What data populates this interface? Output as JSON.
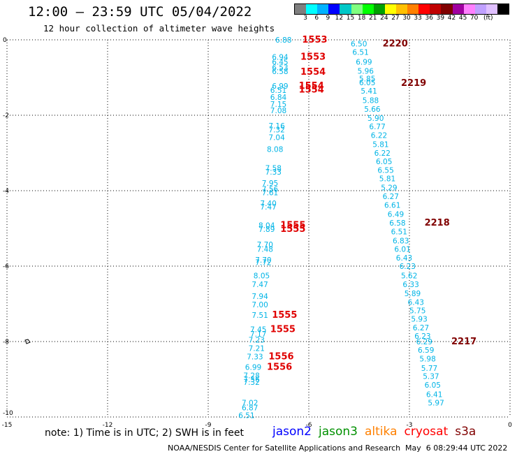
{
  "header": {
    "title": "12:00 – 23:59 UTC 05/04/2022",
    "subtitle": "12 hour collection of altimeter wave heights"
  },
  "scale": {
    "colors": [
      "#7f7f7f",
      "#00ffff",
      "#00b2ff",
      "#0000ff",
      "#00c8c8",
      "#80ff80",
      "#00ff00",
      "#00a000",
      "#ffff00",
      "#ffc000",
      "#ff8000",
      "#ff0000",
      "#c00000",
      "#800000",
      "#a000a0",
      "#ff80ff",
      "#c0a0ff",
      "#e0c0ff",
      "#000000"
    ],
    "labels": [
      "3",
      "6",
      "9",
      "12",
      "15",
      "18",
      "21",
      "24",
      "27",
      "30",
      "33",
      "36",
      "39",
      "42",
      "45",
      "70",
      "(ft)"
    ]
  },
  "note": "note: 1) Time is in UTC; 2) SWH is in feet",
  "legend": [
    {
      "name": "jason2",
      "color": "#0000ff"
    },
    {
      "name": "jason3",
      "color": "#009000"
    },
    {
      "name": "altika",
      "color": "#ff8000"
    },
    {
      "name": "cryosat",
      "color": "#ff0000"
    },
    {
      "name": "s3a",
      "color": "#800000"
    }
  ],
  "footer": {
    "center": "NOAA/NESDIS Center for Satellite Applications and Research",
    "time": "May  6 08:29:44 UTC 2022"
  },
  "colors": {
    "swh": "#00b4e6",
    "cryosat": "#e00000",
    "s3a": "#800000",
    "grid": "#000000"
  },
  "chart_data": {
    "type": "scatter",
    "xlim": [
      -15,
      0
    ],
    "ylim": [
      -10,
      0
    ],
    "x_ticks": [
      -15,
      -12,
      -9,
      -6,
      -3,
      0
    ],
    "y_ticks": [
      0,
      -2,
      -4,
      -6,
      -8,
      -10
    ],
    "grid": true,
    "track_a": [
      {
        "x": -7.0,
        "y": -0.0,
        "v": "6.88"
      },
      {
        "x": -7.1,
        "y": -0.45,
        "v": "6.94"
      },
      {
        "x": -7.1,
        "y": -0.58,
        "v": "6.45"
      },
      {
        "x": -7.1,
        "y": -0.73,
        "v": "6.53"
      },
      {
        "x": -7.1,
        "y": -0.83,
        "v": "6.58"
      },
      {
        "x": -7.1,
        "y": -1.22,
        "v": "6.99"
      },
      {
        "x": -7.15,
        "y": -1.33,
        "v": "6.51"
      },
      {
        "x": -7.15,
        "y": -1.52,
        "v": "6.84"
      },
      {
        "x": -7.15,
        "y": -1.7,
        "v": "7.15"
      },
      {
        "x": -7.15,
        "y": -1.87,
        "v": "7.08"
      },
      {
        "x": -7.2,
        "y": -2.28,
        "v": "7.16"
      },
      {
        "x": -7.2,
        "y": -2.38,
        "v": "7.32"
      },
      {
        "x": -7.2,
        "y": -2.58,
        "v": "7.04"
      },
      {
        "x": -7.25,
        "y": -2.9,
        "v": "8.08"
      },
      {
        "x": -7.3,
        "y": -3.4,
        "v": "7.58"
      },
      {
        "x": -7.3,
        "y": -3.5,
        "v": "7.33"
      },
      {
        "x": -7.4,
        "y": -3.8,
        "v": "7.95"
      },
      {
        "x": -7.4,
        "y": -3.95,
        "v": "7.56"
      },
      {
        "x": -7.4,
        "y": -4.05,
        "v": "7.61"
      },
      {
        "x": -7.45,
        "y": -4.33,
        "v": "7.40"
      },
      {
        "x": -7.45,
        "y": -4.43,
        "v": "7.47"
      },
      {
        "x": -7.5,
        "y": -4.92,
        "v": "8.04"
      },
      {
        "x": -7.5,
        "y": -5.02,
        "v": "7.89"
      },
      {
        "x": -7.55,
        "y": -5.43,
        "v": "7.70"
      },
      {
        "x": -7.55,
        "y": -5.55,
        "v": "7.48"
      },
      {
        "x": -7.6,
        "y": -5.83,
        "v": "7.70"
      },
      {
        "x": -7.6,
        "y": -5.9,
        "v": "7.72"
      },
      {
        "x": -7.65,
        "y": -6.25,
        "v": "8.05"
      },
      {
        "x": -7.7,
        "y": -6.48,
        "v": "7.47"
      },
      {
        "x": -7.7,
        "y": -6.8,
        "v": "7.94"
      },
      {
        "x": -7.7,
        "y": -7.02,
        "v": "7.00"
      },
      {
        "x": -7.7,
        "y": -7.3,
        "v": "7.51"
      },
      {
        "x": -7.75,
        "y": -7.68,
        "v": "7.45"
      },
      {
        "x": -7.75,
        "y": -7.8,
        "v": "7.17"
      },
      {
        "x": -7.8,
        "y": -7.95,
        "v": "7.23"
      },
      {
        "x": -7.8,
        "y": -8.18,
        "v": "7.21"
      },
      {
        "x": -7.85,
        "y": -8.4,
        "v": "7.33"
      },
      {
        "x": -7.9,
        "y": -8.68,
        "v": "6.99"
      },
      {
        "x": -7.95,
        "y": -8.9,
        "v": "7.28"
      },
      {
        "x": -7.95,
        "y": -9.0,
        "v": "7.56"
      },
      {
        "x": -7.95,
        "y": -9.07,
        "v": "7.32"
      },
      {
        "x": -8.0,
        "y": -9.62,
        "v": "7.02"
      },
      {
        "x": -8.0,
        "y": -9.75,
        "v": "6.87"
      },
      {
        "x": -8.1,
        "y": -9.95,
        "v": "6.51"
      }
    ],
    "track_b": [
      {
        "x": -4.75,
        "y": -0.1,
        "v": "6.50"
      },
      {
        "x": -4.7,
        "y": -0.32,
        "v": "6.51"
      },
      {
        "x": -4.6,
        "y": -0.58,
        "v": "6.99"
      },
      {
        "x": -4.55,
        "y": -0.82,
        "v": "5.96"
      },
      {
        "x": -4.5,
        "y": -1.03,
        "v": "5.85"
      },
      {
        "x": -4.5,
        "y": -1.13,
        "v": "6.05"
      },
      {
        "x": -4.45,
        "y": -1.35,
        "v": "5.41"
      },
      {
        "x": -4.4,
        "y": -1.6,
        "v": "5.88"
      },
      {
        "x": -4.35,
        "y": -1.83,
        "v": "5.66"
      },
      {
        "x": -4.25,
        "y": -2.07,
        "v": "5.90"
      },
      {
        "x": -4.2,
        "y": -2.3,
        "v": "6.77"
      },
      {
        "x": -4.15,
        "y": -2.53,
        "v": "6.22"
      },
      {
        "x": -4.1,
        "y": -2.77,
        "v": "5.81"
      },
      {
        "x": -4.05,
        "y": -3.0,
        "v": "6.22"
      },
      {
        "x": -4.0,
        "y": -3.22,
        "v": "6.05"
      },
      {
        "x": -3.95,
        "y": -3.45,
        "v": "6.55"
      },
      {
        "x": -3.9,
        "y": -3.68,
        "v": "5.81"
      },
      {
        "x": -3.85,
        "y": -3.92,
        "v": "5.29"
      },
      {
        "x": -3.8,
        "y": -4.15,
        "v": "6.27"
      },
      {
        "x": -3.75,
        "y": -4.38,
        "v": "6.61"
      },
      {
        "x": -3.65,
        "y": -4.62,
        "v": "6.49"
      },
      {
        "x": -3.6,
        "y": -4.85,
        "v": "6.58"
      },
      {
        "x": -3.55,
        "y": -5.08,
        "v": "6.51"
      },
      {
        "x": -3.5,
        "y": -5.32,
        "v": "6.83"
      },
      {
        "x": -3.45,
        "y": -5.55,
        "v": "6.01"
      },
      {
        "x": -3.4,
        "y": -5.78,
        "v": "6.43"
      },
      {
        "x": -3.3,
        "y": -6.0,
        "v": "6.23"
      },
      {
        "x": -3.25,
        "y": -6.25,
        "v": "5.62"
      },
      {
        "x": -3.2,
        "y": -6.48,
        "v": "6.33"
      },
      {
        "x": -3.15,
        "y": -6.72,
        "v": "5.89"
      },
      {
        "x": -3.05,
        "y": -6.95,
        "v": "6.43"
      },
      {
        "x": -3.0,
        "y": -7.18,
        "v": "5.75"
      },
      {
        "x": -2.95,
        "y": -7.4,
        "v": "5.93"
      },
      {
        "x": -2.9,
        "y": -7.63,
        "v": "6.27"
      },
      {
        "x": -2.85,
        "y": -7.85,
        "v": "6.23"
      },
      {
        "x": -2.8,
        "y": -8.0,
        "v": "6.29"
      },
      {
        "x": -2.75,
        "y": -8.22,
        "v": "6.59"
      },
      {
        "x": -2.7,
        "y": -8.45,
        "v": "5.98"
      },
      {
        "x": -2.65,
        "y": -8.7,
        "v": "5.77"
      },
      {
        "x": -2.6,
        "y": -8.92,
        "v": "5.37"
      },
      {
        "x": -2.55,
        "y": -9.15,
        "v": "6.05"
      },
      {
        "x": -2.5,
        "y": -9.4,
        "v": "6.41"
      },
      {
        "x": -2.45,
        "y": -9.62,
        "v": "5.97"
      }
    ],
    "cryosat_labels": [
      {
        "x": -6.2,
        "y": -0.0,
        "v": "1553"
      },
      {
        "x": -6.25,
        "y": -0.45,
        "v": "1553"
      },
      {
        "x": -6.25,
        "y": -0.85,
        "v": "1554"
      },
      {
        "x": -6.3,
        "y": -1.22,
        "v": "1554"
      },
      {
        "x": -6.3,
        "y": -1.32,
        "v": "1554"
      },
      {
        "x": -6.85,
        "y": -4.92,
        "v": "1555"
      },
      {
        "x": -6.85,
        "y": -5.02,
        "v": "1555"
      },
      {
        "x": -7.1,
        "y": -7.3,
        "v": "1555"
      },
      {
        "x": -7.15,
        "y": -7.68,
        "v": "1555"
      },
      {
        "x": -7.2,
        "y": -8.4,
        "v": "1556"
      },
      {
        "x": -7.25,
        "y": -8.68,
        "v": "1556"
      }
    ],
    "s3a_labels": [
      {
        "x": -3.8,
        "y": -0.1,
        "v": "2220"
      },
      {
        "x": -3.25,
        "y": -1.15,
        "v": "2219"
      },
      {
        "x": -2.55,
        "y": -4.85,
        "v": "2218"
      },
      {
        "x": -1.75,
        "y": -8.0,
        "v": "2217"
      }
    ]
  }
}
